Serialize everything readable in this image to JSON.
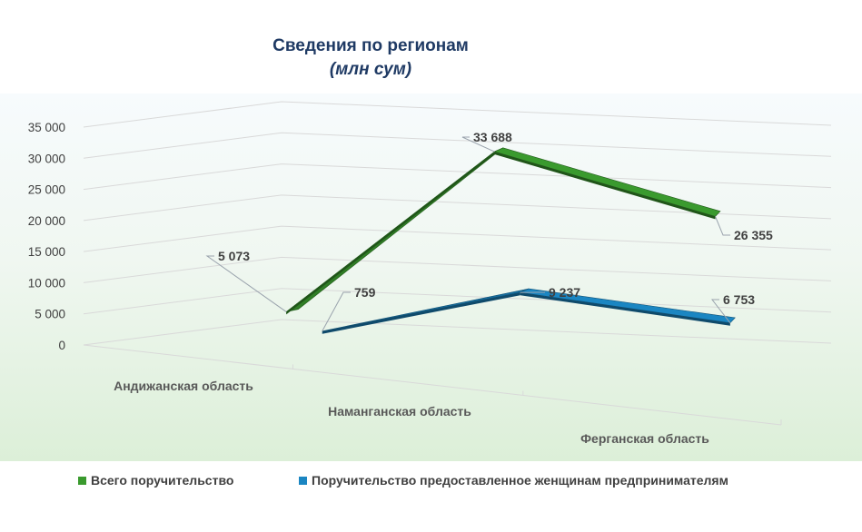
{
  "chart_data": {
    "type": "line",
    "style": "3d",
    "title": "Сведения по регионам",
    "subtitle": "(млн сум)",
    "categories": [
      "Андижанская область",
      "Наманганская область",
      "Ферганская область"
    ],
    "y_ticks": [
      "0",
      "5 000",
      "10 000",
      "15 000",
      "20 000",
      "25 000",
      "30 000",
      "35 000"
    ],
    "ylim": [
      0,
      35000
    ],
    "series": [
      {
        "name": "Всего поручительство",
        "values": [
          5073,
          33688,
          26355
        ],
        "labels": [
          "5 073",
          "33 688",
          "26 355"
        ],
        "color": "#3a9a2e"
      },
      {
        "name": "Поручительство предоставленное женщинам предпринимателям",
        "values": [
          759,
          9237,
          6753
        ],
        "labels": [
          "759",
          "9 237",
          "6 753"
        ],
        "color": "#1b86c2"
      }
    ],
    "legend_position": "bottom",
    "grid": true
  }
}
